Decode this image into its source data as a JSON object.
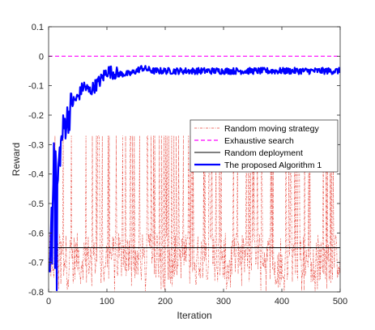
{
  "chart_data": {
    "type": "line",
    "xlabel": "Iteration",
    "ylabel": "Reward",
    "xlim": [
      0,
      500
    ],
    "ylim": [
      -0.8,
      0.1
    ],
    "xticks": [
      0,
      100,
      200,
      300,
      400,
      500
    ],
    "yticks": [
      0.1,
      0,
      -0.1,
      -0.2,
      -0.3,
      -0.4,
      -0.5,
      -0.6,
      -0.7,
      -0.8
    ],
    "grid": false,
    "legend_position": "right",
    "series": [
      {
        "name": "Random moving strategy",
        "style": "dash-dot",
        "color": "#e8463c",
        "description_values": {
          "x": [
            1,
            500
          ],
          "y_min": -0.8,
          "y_max": -0.27,
          "typical_y": -0.68
        }
      },
      {
        "name": "Exhaustive search",
        "style": "dashed",
        "color": "#ff00ff",
        "x": [
          0,
          500
        ],
        "y": [
          0,
          0
        ]
      },
      {
        "name": "Random deployment",
        "style": "solid",
        "color": "#000000",
        "x": [
          0,
          500
        ],
        "y": [
          -0.65,
          -0.65
        ]
      },
      {
        "name": "The proposed Algorithm 1",
        "style": "solid-thick",
        "color": "#0000ff",
        "x": [
          0,
          5,
          10,
          15,
          20,
          25,
          30,
          35,
          40,
          50,
          60,
          70,
          80,
          90,
          100,
          120,
          140,
          160,
          180,
          200,
          250,
          300,
          350,
          400,
          450,
          500
        ],
        "y": [
          -0.8,
          -0.55,
          -0.3,
          -0.4,
          -0.32,
          -0.25,
          -0.22,
          -0.2,
          -0.16,
          -0.14,
          -0.1,
          -0.12,
          -0.1,
          -0.08,
          -0.05,
          -0.06,
          -0.06,
          -0.04,
          -0.05,
          -0.05,
          -0.05,
          -0.05,
          -0.05,
          -0.05,
          -0.05,
          -0.05
        ]
      }
    ]
  }
}
